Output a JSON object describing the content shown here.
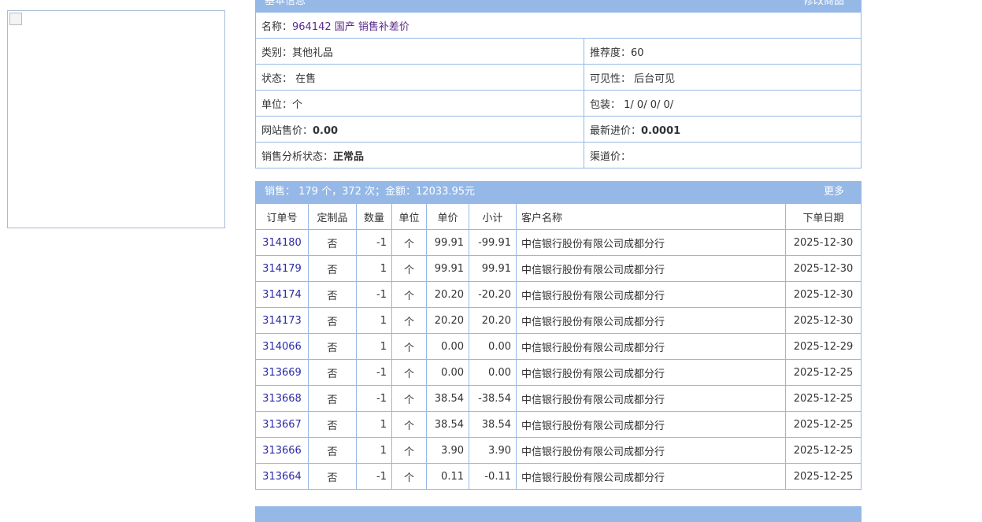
{
  "basic": {
    "title": "基本信息",
    "edit_link": "修改商品",
    "name_label": "名称：",
    "name_value": "964142 国产 销售补差价",
    "rows": [
      [
        {
          "label": "类别：",
          "value": "其他礼品",
          "bold": false
        },
        {
          "label": "推荐度：",
          "value": "60",
          "bold": false
        }
      ],
      [
        {
          "label": "状态：",
          "value": " 在售",
          "bold": false
        },
        {
          "label": "可见性：",
          "value": " 后台可见",
          "bold": false
        }
      ],
      [
        {
          "label": "单位：",
          "value": "个",
          "bold": false
        },
        {
          "label": "包装：",
          "value": " 1/ 0/ 0/ 0/",
          "bold": false
        }
      ],
      [
        {
          "label": "网站售价：",
          "value": "0.00",
          "bold": true
        },
        {
          "label": "最新进价：",
          "value": "0.0001",
          "bold": true
        }
      ],
      [
        {
          "label": "销售分析状态：",
          "value": "正常品",
          "bold": true
        },
        {
          "label": "渠道价：",
          "value": "",
          "bold": false
        }
      ]
    ]
  },
  "sales": {
    "summary": "销售： 179 个，372 次；金额：12033.95元",
    "more": "更多",
    "headers": [
      "订单号",
      "定制品",
      "数量",
      "单位",
      "单价",
      "小计",
      "客户名称",
      "下单日期"
    ],
    "rows": [
      [
        "314180",
        "否",
        "-1",
        "个",
        "99.91",
        "-99.91",
        "中信银行股份有限公司成都分行",
        "2025-12-30"
      ],
      [
        "314179",
        "否",
        "1",
        "个",
        "99.91",
        "99.91",
        "中信银行股份有限公司成都分行",
        "2025-12-30"
      ],
      [
        "314174",
        "否",
        "-1",
        "个",
        "20.20",
        "-20.20",
        "中信银行股份有限公司成都分行",
        "2025-12-30"
      ],
      [
        "314173",
        "否",
        "1",
        "个",
        "20.20",
        "20.20",
        "中信银行股份有限公司成都分行",
        "2025-12-30"
      ],
      [
        "314066",
        "否",
        "1",
        "个",
        "0.00",
        "0.00",
        "中信银行股份有限公司成都分行",
        "2025-12-29"
      ],
      [
        "313669",
        "否",
        "-1",
        "个",
        "0.00",
        "0.00",
        "中信银行股份有限公司成都分行",
        "2025-12-25"
      ],
      [
        "313668",
        "否",
        "-1",
        "个",
        "38.54",
        "-38.54",
        "中信银行股份有限公司成都分行",
        "2025-12-25"
      ],
      [
        "313667",
        "否",
        "1",
        "个",
        "38.54",
        "38.54",
        "中信银行股份有限公司成都分行",
        "2025-12-25"
      ],
      [
        "313666",
        "否",
        "1",
        "个",
        "3.90",
        "3.90",
        "中信银行股份有限公司成都分行",
        "2025-12-25"
      ],
      [
        "313664",
        "否",
        "-1",
        "个",
        "0.11",
        "-0.11",
        "中信银行股份有限公司成都分行",
        "2025-12-25"
      ]
    ]
  },
  "colors": {
    "header": "#95b8e7",
    "link": "#2a2aa8",
    "name": "#5a2a8a"
  }
}
